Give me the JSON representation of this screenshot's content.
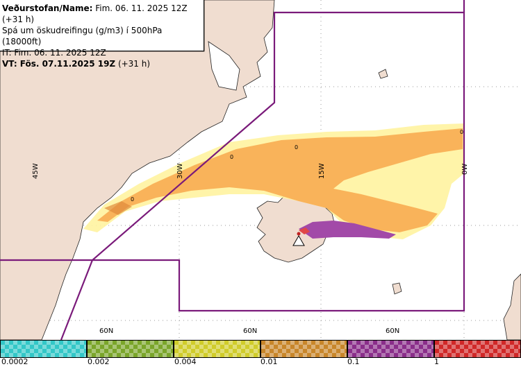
{
  "header": {
    "line1_label": "Veðurstofan/Name:",
    "line1_value": " Fim. 06. 11. 2025 12Z (+31 h)",
    "line2": "Spá um öskudreifingu (g/m3) í 500hPa (18000ft)",
    "line3": "IT: Fim. 06. 11. 2025 12Z",
    "line4_label": "VT: Fös. 07.11.2025 19Z",
    "line4_value": " (+31 h)"
  },
  "map": {
    "longitude_labels": [
      "45W",
      "30W",
      "15W",
      "0W"
    ],
    "latitude_labels": [
      "60N",
      "60N",
      "60N"
    ],
    "value_marks": [
      "0",
      "0",
      "0",
      "0"
    ],
    "colors": {
      "land": "#f0ddd0",
      "sea": "#ffffff",
      "coast": "#222222",
      "fir_boundary": "#7a1a7a",
      "volcano_marker": "#ffffff"
    }
  },
  "legend": {
    "colors": [
      "#33c7c7",
      "#7aa52a",
      "#d0cc2a",
      "#c8862a",
      "#8a2e8a",
      "#d02828"
    ],
    "tick_labels": [
      "0.0002",
      "0.002",
      "0.004",
      "0.01",
      "0.1",
      "1"
    ]
  }
}
